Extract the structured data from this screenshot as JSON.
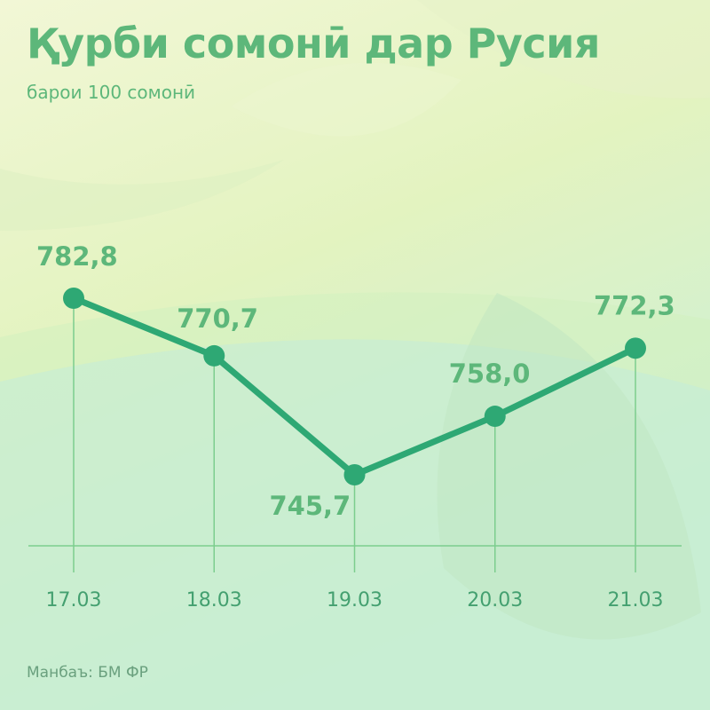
{
  "header": {
    "title": "Қурби сомонӣ дар Русия",
    "subtitle": "барои 100 сомонӣ"
  },
  "footer": {
    "source": "Манбаъ: БМ ФР"
  },
  "colors": {
    "accent": "#5db77a",
    "line": "#2ea874",
    "baseline": "#7ccd8e"
  },
  "chart_data": {
    "type": "line",
    "categories": [
      "17.03",
      "18.03",
      "19.03",
      "20.03",
      "21.03"
    ],
    "values": [
      782.8,
      770.7,
      745.7,
      758.0,
      772.3
    ],
    "value_labels": [
      "782,8",
      "770,7",
      "745,7",
      "758,0",
      "772,3"
    ],
    "title": "Қурби сомонӣ дар Русия",
    "subtitle": "барои 100 сомонӣ",
    "xlabel": "",
    "ylabel": "",
    "grid": false,
    "legend": "none"
  }
}
